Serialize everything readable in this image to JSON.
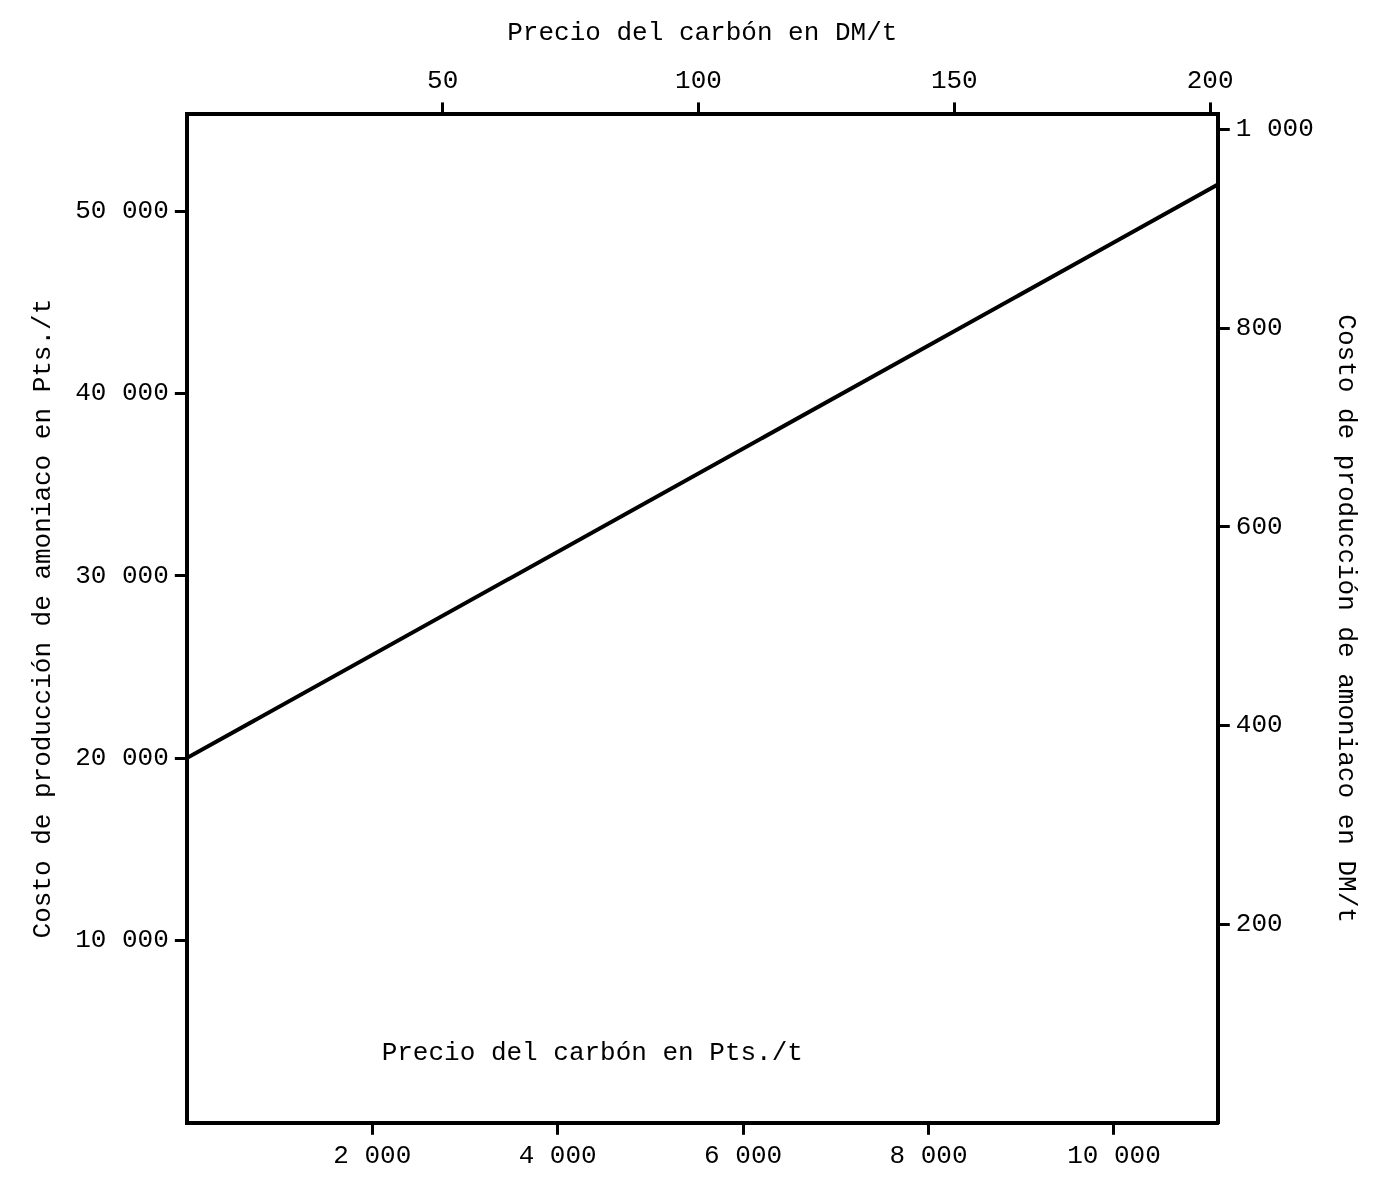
{
  "chart_data": {
    "type": "line",
    "xlabel": "Precio del carbón en Pts./t",
    "x2label": "Precio del carbón en DM/t",
    "ylabel": "Costo de producción de amoniaco en Pts./t",
    "y2label": "Costo de producción de amoniaco en DM/t",
    "xlim": [
      0,
      11120
    ],
    "xticks": [
      {
        "value": 2000,
        "label": "2 000"
      },
      {
        "value": 4000,
        "label": "4 000"
      },
      {
        "value": 6000,
        "label": "6 000"
      },
      {
        "value": 8000,
        "label": "8 000"
      },
      {
        "value": 10000,
        "label": "10 000"
      }
    ],
    "x2lim": [
      0,
      201.5
    ],
    "x2ticks": [
      50,
      100,
      150,
      200
    ],
    "ylim": [
      0,
      55300
    ],
    "yticks": [
      {
        "value": 10000,
        "label": "10 000"
      },
      {
        "value": 20000,
        "label": "20 000"
      },
      {
        "value": 30000,
        "label": "30 000"
      },
      {
        "value": 40000,
        "label": "40 000"
      },
      {
        "value": 50000,
        "label": "50 000"
      }
    ],
    "y2lim": [
      0,
      1015
    ],
    "y2ticks": [
      200,
      400,
      600,
      800,
      {
        "value": 1000,
        "label": "1 000"
      }
    ],
    "series": [
      {
        "color": "#000000",
        "x": [
          0,
          11120
        ],
        "values": [
          20000,
          51450
        ]
      }
    ],
    "marker": "none",
    "line_style": "solid",
    "legend": false
  }
}
